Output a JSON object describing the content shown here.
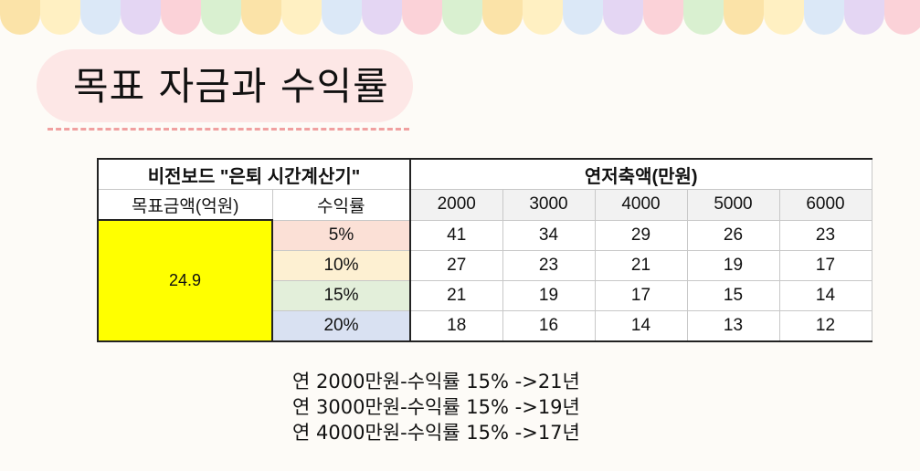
{
  "header": {
    "scallop_colors": [
      "#fbe3a8",
      "#fff0c2",
      "#dbe8f7",
      "#e4d6f3",
      "#fbd2d8",
      "#d9f0d0",
      "#fbe3a8",
      "#fff0c2",
      "#dbe8f7",
      "#e4d6f3",
      "#fbd2d8",
      "#d9f0d0",
      "#fbe3a8",
      "#fff0c2",
      "#dbe8f7",
      "#e4d6f3",
      "#fbd2d8",
      "#d9f0d0",
      "#fbe3a8",
      "#fff0c2",
      "#dbe8f7",
      "#e4d6f3",
      "#fbd2d8"
    ]
  },
  "title": "목표 자금과 수익률",
  "table": {
    "left_header": "비전보드 \"은퇴 시간계산기\"",
    "right_header": "연저축액(만원)",
    "col_target": "목표금액(억원)",
    "col_rate": "수익률",
    "years": [
      "2000",
      "3000",
      "4000",
      "5000",
      "6000"
    ],
    "target_value": "24.9",
    "rows": [
      {
        "rate": "5%",
        "rate_color": "#fbe0d6",
        "values": [
          "41",
          "34",
          "29",
          "26",
          "23"
        ]
      },
      {
        "rate": "10%",
        "rate_color": "#fdf0d2",
        "values": [
          "27",
          "23",
          "21",
          "19",
          "17"
        ]
      },
      {
        "rate": "15%",
        "rate_color": "#e3efda",
        "values": [
          "21",
          "19",
          "17",
          "15",
          "14"
        ]
      },
      {
        "rate": "20%",
        "rate_color": "#d9e1f2",
        "values": [
          "18",
          "16",
          "14",
          "13",
          "12"
        ]
      }
    ]
  },
  "notes": [
    "연 2000만원-수익률 15% ->21년",
    "연 3000만원-수익률 15% ->19년",
    "연 4000만원-수익률 15% ->17년"
  ]
}
